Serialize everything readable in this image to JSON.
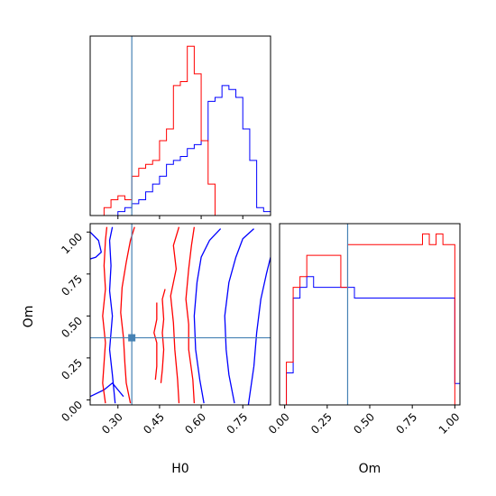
{
  "chart_data": {
    "type": "corner-plot",
    "parameters": [
      "H0",
      "Om"
    ],
    "truth": {
      "H0": 0.35,
      "Om": 0.37
    },
    "truth_color": "#4682b4",
    "series": [
      {
        "color": "#ff0000"
      },
      {
        "color": "#0000ff"
      }
    ],
    "panels": {
      "H0_hist": {
        "xlim": [
          0.2,
          0.85
        ],
        "bin_edges": [
          0.2,
          0.225,
          0.25,
          0.275,
          0.3,
          0.325,
          0.35,
          0.375,
          0.4,
          0.425,
          0.45,
          0.475,
          0.5,
          0.525,
          0.55,
          0.575,
          0.6,
          0.625,
          0.65,
          0.675,
          0.7,
          0.725,
          0.75,
          0.775,
          0.8,
          0.825,
          0.85
        ],
        "red_counts": [
          0,
          0,
          2,
          4,
          5,
          4,
          10,
          12,
          13,
          14,
          19,
          22,
          33,
          34,
          43,
          36,
          19,
          8,
          0,
          0,
          0,
          0,
          0,
          0,
          0,
          0
        ],
        "blue_counts": [
          0,
          0,
          0,
          0,
          1,
          2,
          3,
          4,
          6,
          8,
          10,
          13,
          14,
          15,
          17,
          18,
          19,
          29,
          30,
          33,
          32,
          30,
          22,
          14,
          2,
          1
        ]
      },
      "Om_hist": {
        "xlim": [
          -0.03,
          1.03
        ],
        "xticks": [
          "0.00",
          "0.25",
          "0.50",
          "0.75",
          "1.00"
        ],
        "xlabel": "Om",
        "bin_edges": [
          -0.03,
          0.01,
          0.05,
          0.09,
          0.13,
          0.17,
          0.21,
          0.25,
          0.29,
          0.33,
          0.37,
          0.41,
          0.45,
          0.49,
          0.53,
          0.57,
          0.61,
          0.65,
          0.69,
          0.73,
          0.77,
          0.81,
          0.85,
          0.89,
          0.93,
          0.97,
          1.0,
          1.03
        ],
        "red_counts": [
          0,
          4,
          11,
          12,
          14,
          14,
          14,
          14,
          14,
          11,
          15,
          15,
          15,
          15,
          15,
          15,
          15,
          15,
          15,
          15,
          15,
          16,
          15,
          16,
          15,
          15,
          0
        ],
        "blue_counts": [
          0,
          3,
          10,
          11,
          12,
          11,
          11,
          11,
          11,
          11,
          11,
          10,
          10,
          10,
          10,
          10,
          10,
          10,
          10,
          10,
          10,
          10,
          10,
          10,
          10,
          10,
          2
        ]
      },
      "joint": {
        "xlim": [
          0.2,
          0.85
        ],
        "ylim": [
          -0.03,
          1.05
        ],
        "xticks": [
          "0.30",
          "0.45",
          "0.60",
          "0.75"
        ],
        "yticks": [
          "0.00",
          "0.25",
          "0.50",
          "0.75",
          "1.00"
        ],
        "xlabel": "H0",
        "ylabel": "Om",
        "red_contours": [
          [
            [
              0.345,
              -0.02
            ],
            [
              0.33,
              0.1
            ],
            [
              0.325,
              0.22
            ],
            [
              0.32,
              0.37
            ],
            [
              0.31,
              0.52
            ],
            [
              0.315,
              0.67
            ],
            [
              0.33,
              0.82
            ],
            [
              0.345,
              0.95
            ],
            [
              0.36,
              1.03
            ]
          ],
          [
            [
              0.255,
              -0.02
            ],
            [
              0.245,
              0.1
            ],
            [
              0.25,
              0.22
            ],
            [
              0.255,
              0.34
            ],
            [
              0.245,
              0.5
            ],
            [
              0.255,
              0.66
            ],
            [
              0.25,
              0.8
            ],
            [
              0.255,
              0.95
            ],
            [
              0.26,
              1.03
            ]
          ],
          [
            [
              0.575,
              -0.02
            ],
            [
              0.57,
              0.12
            ],
            [
              0.555,
              0.3
            ],
            [
              0.555,
              0.45
            ],
            [
              0.545,
              0.6
            ],
            [
              0.555,
              0.78
            ],
            [
              0.565,
              0.92
            ],
            [
              0.575,
              1.03
            ]
          ],
          [
            [
              0.52,
              -0.02
            ],
            [
              0.515,
              0.12
            ],
            [
              0.505,
              0.3
            ],
            [
              0.5,
              0.46
            ],
            [
              0.49,
              0.62
            ],
            [
              0.51,
              0.78
            ],
            [
              0.5,
              0.92
            ],
            [
              0.52,
              1.03
            ]
          ],
          [
            [
              0.455,
              0.1
            ],
            [
              0.46,
              0.18
            ],
            [
              0.465,
              0.3
            ],
            [
              0.46,
              0.4
            ],
            [
              0.465,
              0.48
            ],
            [
              0.46,
              0.6
            ],
            [
              0.47,
              0.66
            ]
          ],
          [
            [
              0.435,
              0.12
            ],
            [
              0.44,
              0.2
            ],
            [
              0.44,
              0.34
            ],
            [
              0.43,
              0.4
            ],
            [
              0.44,
              0.48
            ],
            [
              0.44,
              0.58
            ]
          ]
        ],
        "blue_contours": [
          [
            [
              0.61,
              -0.02
            ],
            [
              0.595,
              0.12
            ],
            [
              0.58,
              0.3
            ],
            [
              0.575,
              0.5
            ],
            [
              0.585,
              0.7
            ],
            [
              0.6,
              0.85
            ],
            [
              0.63,
              0.95
            ],
            [
              0.67,
              1.02
            ]
          ],
          [
            [
              0.72,
              -0.02
            ],
            [
              0.7,
              0.15
            ],
            [
              0.69,
              0.3
            ],
            [
              0.685,
              0.5
            ],
            [
              0.7,
              0.7
            ],
            [
              0.725,
              0.85
            ],
            [
              0.75,
              0.96
            ],
            [
              0.79,
              1.02
            ]
          ],
          [
            [
              0.77,
              -0.03
            ],
            [
              0.79,
              0.2
            ],
            [
              0.8,
              0.4
            ],
            [
              0.815,
              0.6
            ],
            [
              0.835,
              0.75
            ],
            [
              0.85,
              0.85
            ]
          ],
          [
            [
              0.29,
              -0.02
            ],
            [
              0.28,
              0.15
            ],
            [
              0.27,
              0.3
            ],
            [
              0.28,
              0.5
            ],
            [
              0.27,
              0.65
            ],
            [
              0.275,
              0.8
            ],
            [
              0.27,
              0.95
            ],
            [
              0.28,
              1.03
            ]
          ],
          [
            [
              0.2,
              0.02
            ],
            [
              0.25,
              0.06
            ],
            [
              0.28,
              0.1
            ],
            [
              0.3,
              0.06
            ],
            [
              0.32,
              0.02
            ]
          ],
          [
            [
              0.2,
              1.0
            ],
            [
              0.23,
              0.95
            ],
            [
              0.24,
              0.88
            ],
            [
              0.22,
              0.85
            ],
            [
              0.2,
              0.84
            ]
          ]
        ]
      }
    }
  }
}
